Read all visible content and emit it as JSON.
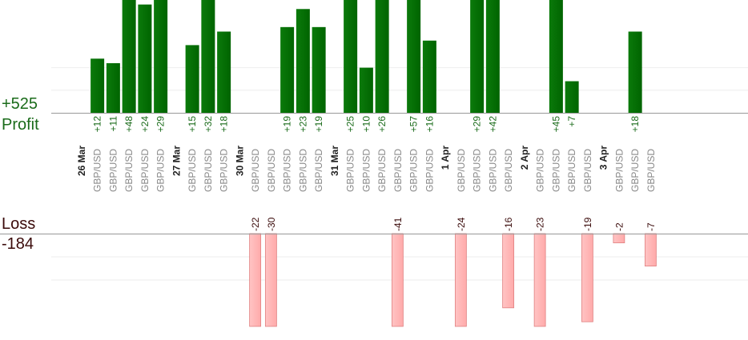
{
  "labels": {
    "profit_total": "+525",
    "profit_word": "Profit",
    "loss_word": "Loss",
    "loss_total": "-184"
  },
  "colors": {
    "profit_bar": "#006400",
    "profit_text": "#1a6b1a",
    "loss_bar": "#ffaaaa",
    "loss_bar_border": "#e08080",
    "loss_text": "#3a0a0a",
    "pair_text": "#888888",
    "date_text": "#222222",
    "grid": "#eeeeee",
    "axis": "#999999"
  },
  "chart_data": {
    "type": "bar",
    "title": "",
    "xlabel": "",
    "ylabel": "",
    "grid": true,
    "profit_ylim": [
      0,
      25
    ],
    "loss_ylim": [
      -20,
      0
    ],
    "groups": [
      {
        "date": "26 Mar",
        "trades": [
          {
            "pair": "GBP/USD",
            "value": 12
          },
          {
            "pair": "GBP/USD",
            "value": 11
          },
          {
            "pair": "GBP/USD",
            "value": 48
          },
          {
            "pair": "GBP/USD",
            "value": 24
          },
          {
            "pair": "GBP/USD",
            "value": 29
          }
        ]
      },
      {
        "date": "27 Mar",
        "trades": [
          {
            "pair": "GBP/USD",
            "value": 15
          },
          {
            "pair": "GBP/USD",
            "value": 32
          },
          {
            "pair": "GBP/USD",
            "value": 18
          }
        ]
      },
      {
        "date": "30 Mar",
        "trades": [
          {
            "pair": "GBP/USD",
            "value": -22
          },
          {
            "pair": "GBP/USD",
            "value": -30
          },
          {
            "pair": "GBP/USD",
            "value": 19
          },
          {
            "pair": "GBP/USD",
            "value": 23
          },
          {
            "pair": "GBP/USD",
            "value": 19
          }
        ]
      },
      {
        "date": "31 Mar",
        "trades": [
          {
            "pair": "GBP/USD",
            "value": 25
          },
          {
            "pair": "GBP/USD",
            "value": 10
          },
          {
            "pair": "GBP/USD",
            "value": 26
          },
          {
            "pair": "GBP/USD",
            "value": -41
          },
          {
            "pair": "GBP/USD",
            "value": 57
          },
          {
            "pair": "GBP/USD",
            "value": 16
          }
        ]
      },
      {
        "date": "1 Apr",
        "trades": [
          {
            "pair": "GBP/USD",
            "value": -24
          },
          {
            "pair": "GBP/USD",
            "value": 29
          },
          {
            "pair": "GBP/USD",
            "value": 42
          },
          {
            "pair": "GBP/USD",
            "value": -16
          }
        ]
      },
      {
        "date": "2 Apr",
        "trades": [
          {
            "pair": "GBP/USD",
            "value": -23
          },
          {
            "pair": "GBP/USD",
            "value": 45
          },
          {
            "pair": "GBP/USD",
            "value": 7
          },
          {
            "pair": "GBP/USD",
            "value": -19
          }
        ]
      },
      {
        "date": "3 Apr",
        "trades": [
          {
            "pair": "GBP/USD",
            "value": -2
          },
          {
            "pair": "GBP/USD",
            "value": 18
          },
          {
            "pair": "GBP/USD",
            "value": -7
          }
        ]
      }
    ]
  }
}
